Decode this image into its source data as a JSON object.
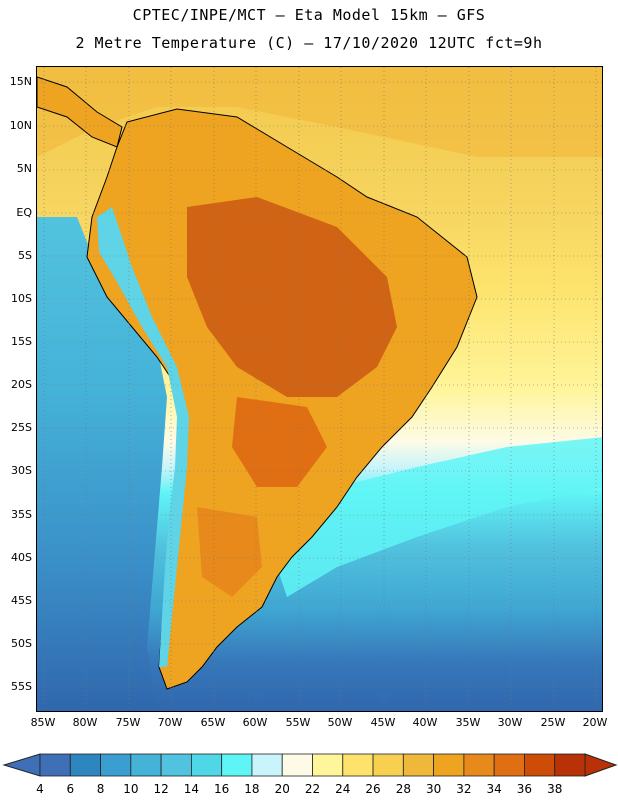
{
  "title_line1": "CPTEC/INPE/MCT –  Eta Model 15km – GFS",
  "title_line2": "2 Metre Temperature (C) – 17/10/2020 12UTC fct=9h",
  "lat_labels": [
    "15N",
    "10N",
    "5N",
    "EQ",
    "5S",
    "10S",
    "15S",
    "20S",
    "25S",
    "30S",
    "35S",
    "40S",
    "45S",
    "50S",
    "55S"
  ],
  "lon_labels": [
    "85W",
    "80W",
    "75W",
    "70W",
    "65W",
    "60W",
    "55W",
    "50W",
    "45W",
    "40W",
    "35W",
    "30W",
    "25W",
    "20W"
  ],
  "colorbar": {
    "labels": [
      "4",
      "6",
      "8",
      "10",
      "12",
      "14",
      "16",
      "18",
      "20",
      "22",
      "24",
      "26",
      "28",
      "30",
      "32",
      "34",
      "36",
      "38"
    ],
    "colors": [
      "#3e6fb7",
      "#2e86c1",
      "#3a9fd0",
      "#45b2d8",
      "#52c3df",
      "#4fd6e7",
      "#5ff4f6",
      "#c9f4fb",
      "#fdfbe6",
      "#fff59b",
      "#fde36c",
      "#f8d050",
      "#f0b83a",
      "#eea421",
      "#e78a1b",
      "#df6f12",
      "#cd4c08",
      "#b83107"
    ],
    "arrow_low_color": "#3e6fb7",
    "arrow_high_color": "#b83107"
  },
  "colors": {
    "ocean_deep": "#3066ad",
    "ocean_mid": "#3fb1d6",
    "ocean_cyan": "#5ff4f6",
    "warm_sea": "#f8d050",
    "land_hot": "#d06414",
    "land_warm": "#eea421",
    "andes_cold": "#5fd4e6"
  }
}
